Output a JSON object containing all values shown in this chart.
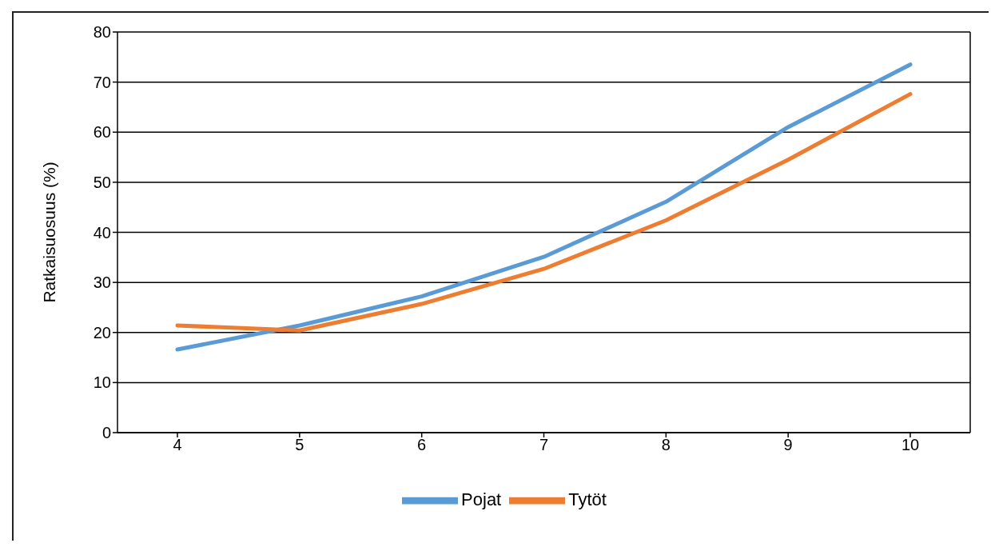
{
  "chart_data": {
    "type": "line",
    "ylabel": "Ratkaisuosuus (%)",
    "categories": [
      "4",
      "5",
      "6",
      "7",
      "8",
      "9",
      "10"
    ],
    "series": [
      {
        "name": "Pojat",
        "color": "#5b9bd5",
        "values": [
          16.6,
          21.4,
          27.2,
          35.1,
          46.1,
          61,
          73.5
        ]
      },
      {
        "name": "Tytöt",
        "color": "#ed7d31",
        "values": [
          21.4,
          20.4,
          25.7,
          32.7,
          42.4,
          54.5,
          67.6
        ]
      }
    ],
    "ylim": [
      0,
      80
    ],
    "yticks": [
      0,
      10,
      20,
      30,
      40,
      50,
      60,
      70,
      80
    ],
    "grid": "y",
    "legend": "bottom",
    "marker": "none",
    "line_style": "solid"
  }
}
